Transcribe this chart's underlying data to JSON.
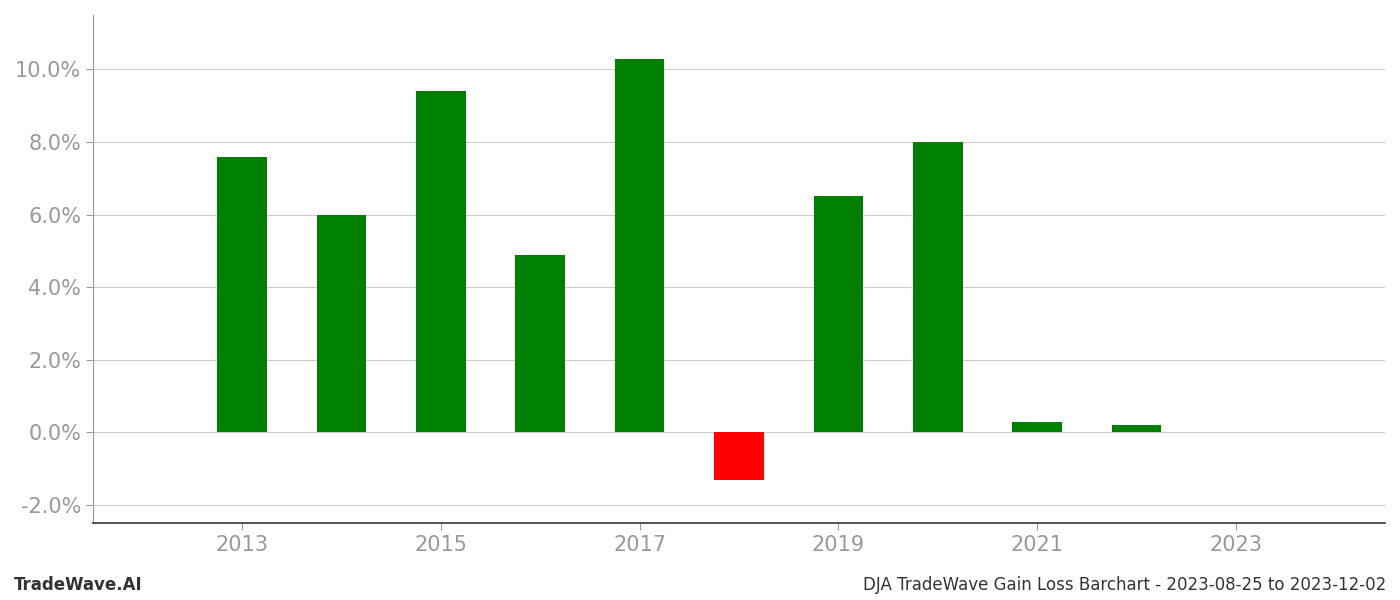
{
  "years": [
    2013,
    2014,
    2015,
    2016,
    2017,
    2018,
    2019,
    2020,
    2021,
    2022,
    2023
  ],
  "values": [
    0.076,
    0.06,
    0.094,
    0.049,
    0.103,
    -0.013,
    0.065,
    0.08,
    0.003,
    0.002,
    null
  ],
  "bar_colors": [
    "#008000",
    "#008000",
    "#008000",
    "#008000",
    "#008000",
    "#ff0000",
    "#008000",
    "#008000",
    "#008000",
    "#008000",
    null
  ],
  "ylim": [
    -0.025,
    0.115
  ],
  "yticks": [
    -0.02,
    0.0,
    0.02,
    0.04,
    0.06,
    0.08,
    0.1
  ],
  "xticks": [
    2013,
    2015,
    2017,
    2019,
    2021,
    2023
  ],
  "title": "DJA TradeWave Gain Loss Barchart - 2023-08-25 to 2023-12-02",
  "bottom_left_text": "TradeWave.AI",
  "bar_width": 0.5,
  "grid_color": "#cccccc",
  "bg_color": "#ffffff",
  "spine_color": "#999999",
  "tick_label_color": "#999999",
  "bottom_text_color": "#333333"
}
